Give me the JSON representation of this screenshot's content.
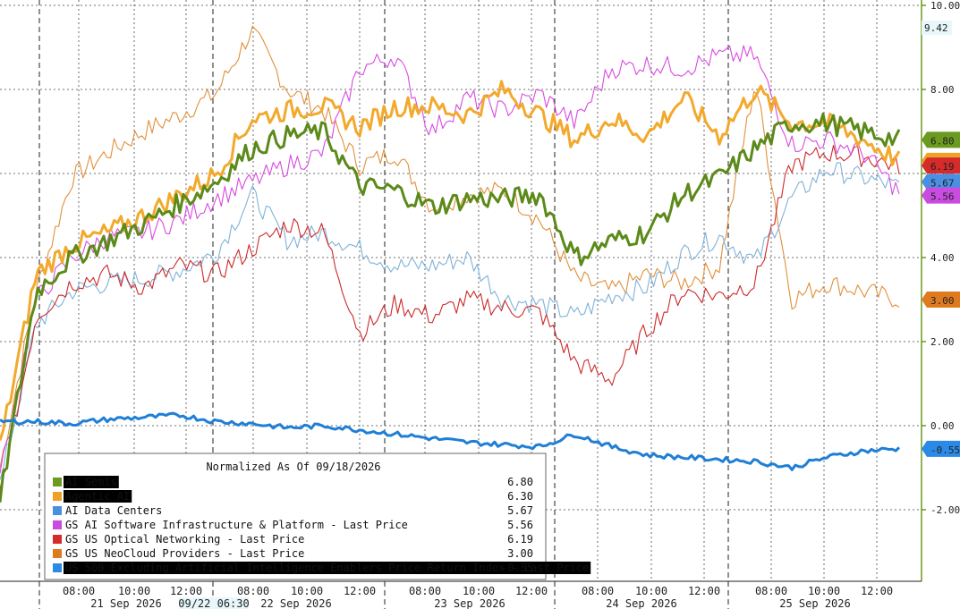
{
  "chart_data": {
    "type": "line",
    "title": "",
    "legend_title": "Normalized As Of 09/18/2026",
    "ylim": [
      -2.6,
      10.0
    ],
    "y_ticks": [
      "10.00",
      "8.00",
      "6.00",
      "4.00",
      "2.00",
      "0.00",
      "-2.00"
    ],
    "x_time_labels": [
      "08:00",
      "10:00",
      "12:00",
      "08:00",
      "10:00",
      "12:00",
      "08:00",
      "10:00",
      "12:00",
      "08:00",
      "10:00",
      "12:00",
      "08:00",
      "10:00",
      "12:00"
    ],
    "x_date_labels": [
      "21 Sep 2026",
      "22 Sep 2026",
      "23 Sep 2026",
      "24 Sep 2026",
      "25 Sep 2026"
    ],
    "crosshair_label": "09/22 06:30",
    "crosshair_value": "9.42",
    "grid": true,
    "legend_position": "bottom-left",
    "series": [
      {
        "name": "AI Semis",
        "last": "6.80",
        "color": "#5c8a1a",
        "tag_bg": "#6a9a1f",
        "tag_fg": "#ffffff",
        "values": [
          -1.8,
          3.2,
          4.0,
          4.4,
          4.8,
          5.3,
          5.8,
          6.6,
          6.9,
          7.0,
          5.7,
          5.6,
          5.2,
          5.4,
          5.4,
          5.5,
          4.0,
          4.4,
          4.6,
          5.5,
          5.9,
          6.6,
          7.2,
          7.2,
          7.0,
          6.8
        ]
      },
      {
        "name": "Agentic AI",
        "last": "6.30",
        "color": "#f2a92c",
        "tag_bg": "#f0a024",
        "tag_fg": "#111111",
        "values": [
          -0.5,
          3.6,
          4.3,
          4.6,
          5.0,
          5.5,
          6.0,
          7.3,
          7.5,
          7.6,
          7.1,
          7.6,
          7.6,
          7.4,
          8.0,
          7.4,
          6.8,
          7.3,
          6.9,
          7.8,
          6.9,
          8.0,
          7.2,
          7.2,
          6.8,
          6.3
        ]
      },
      {
        "name": "AI Data Centers",
        "last": "5.67",
        "color": "#7fb2d9",
        "tag_bg": "#4a90e2",
        "tag_fg": "#ffffff",
        "values": [
          -1.4,
          2.4,
          3.2,
          3.4,
          3.5,
          3.7,
          4.1,
          5.5,
          4.4,
          4.6,
          4.2,
          3.8,
          3.8,
          4.0,
          3.0,
          2.9,
          2.6,
          3.1,
          3.3,
          4.1,
          4.5,
          3.9,
          5.4,
          6.1,
          5.9,
          5.67
        ]
      },
      {
        "name": "GS AI Software Infrastructure & Platform - Last Price",
        "last": "5.56",
        "color": "#d84ae0",
        "tag_bg": "#c94be0",
        "tag_fg": "#ffffff",
        "values": [
          -1.2,
          3.0,
          4.0,
          4.5,
          4.6,
          4.9,
          5.4,
          5.8,
          6.2,
          6.5,
          8.5,
          8.8,
          7.0,
          7.8,
          7.5,
          7.9,
          7.2,
          8.5,
          8.6,
          8.5,
          8.8,
          8.8,
          6.7,
          6.8,
          6.5,
          5.56
        ]
      },
      {
        "name": "GS US Optical Networking - Last Price",
        "last": "6.19",
        "color": "#cc2a2a",
        "tag_bg": "#d62b2b",
        "tag_fg": "#ffffff",
        "values": [
          -1.6,
          2.6,
          3.4,
          3.6,
          3.3,
          3.8,
          3.6,
          4.2,
          4.8,
          4.6,
          2.2,
          2.9,
          2.6,
          3.0,
          2.8,
          2.7,
          1.5,
          1.1,
          2.3,
          3.2,
          3.1,
          3.4,
          6.2,
          6.5,
          6.4,
          6.19
        ]
      },
      {
        "name": "GS US NeoCloud Providers - Last Price",
        "last": "3.00",
        "color": "#e0903a",
        "tag_bg": "#e07a1f",
        "tag_fg": "#111111",
        "values": [
          -1.0,
          3.2,
          5.9,
          6.5,
          7.0,
          7.4,
          7.9,
          9.4,
          8.0,
          7.5,
          6.2,
          6.5,
          5.2,
          5.5,
          5.6,
          4.9,
          3.5,
          3.2,
          3.6,
          3.4,
          3.8,
          8.2,
          3.0,
          3.4,
          3.2,
          3.0
        ]
      },
      {
        "name": "US 500 Excluding Artificial Intelligence Enablers Price Return Index - Last Price",
        "last": "-0.55",
        "color": "#1f7fd6",
        "tag_bg": "#2b8ae6",
        "tag_fg": "#ffffff",
        "values": [
          0.1,
          0.1,
          0.05,
          0.15,
          0.2,
          0.25,
          0.1,
          0.05,
          -0.05,
          0.0,
          -0.1,
          -0.2,
          -0.3,
          -0.4,
          -0.45,
          -0.5,
          -0.2,
          -0.5,
          -0.7,
          -0.75,
          -0.8,
          -0.85,
          -1.0,
          -0.75,
          -0.6,
          -0.55
        ]
      }
    ]
  }
}
